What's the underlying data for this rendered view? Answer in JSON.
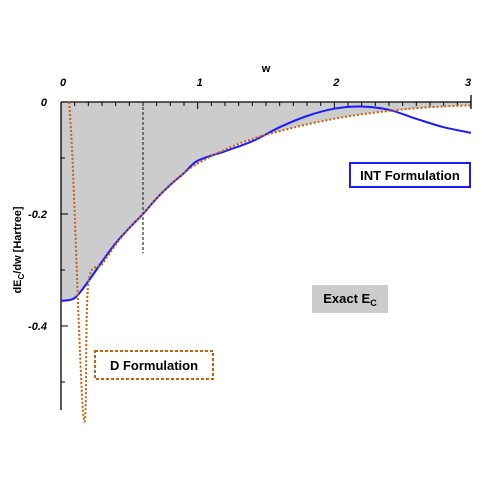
{
  "chart_data": {
    "type": "line",
    "xlabel": "w",
    "ylabel_main": "dE",
    "ylabel_sub": "C",
    "ylabel_rest": "/dw [Hartree]",
    "xlim": [
      0,
      3
    ],
    "ylim": [
      -0.55,
      0
    ],
    "xticks": [
      0,
      1,
      2,
      3
    ],
    "xtick_labels": [
      "0",
      "1",
      "2",
      "3"
    ],
    "yticks": [
      0,
      -0.2,
      -0.4
    ],
    "ytick_labels": [
      "0",
      "-0.2",
      "-0.4"
    ],
    "vline_x": 0.6,
    "vline_ymin": -0.27,
    "colors": {
      "exact_fill": "#cccccc",
      "int": "#1a1aff",
      "d": "#c8600a",
      "int_box": "#1a1aff",
      "d_box": "#c8600a",
      "exact_box": "#cccccc"
    },
    "series": [
      {
        "name": "Exact E",
        "style": "filled",
        "x": [
          0.0,
          0.1,
          0.2,
          0.3,
          0.4,
          0.5,
          0.6,
          0.7,
          0.8,
          0.9,
          1.0,
          1.2,
          1.4,
          1.6,
          1.8,
          2.0,
          2.2,
          2.4,
          2.6,
          2.8,
          3.0
        ],
        "y": [
          -0.355,
          -0.35,
          -0.325,
          -0.29,
          -0.255,
          -0.225,
          -0.2,
          -0.172,
          -0.148,
          -0.127,
          -0.11,
          -0.085,
          -0.066,
          -0.052,
          -0.04,
          -0.03,
          -0.022,
          -0.016,
          -0.011,
          -0.008,
          -0.006
        ]
      },
      {
        "name": "INT Formulation",
        "style": "solid",
        "x": [
          0.0,
          0.1,
          0.2,
          0.3,
          0.4,
          0.5,
          0.6,
          0.7,
          0.8,
          0.9,
          1.0,
          1.2,
          1.4,
          1.6,
          1.8,
          2.0,
          2.2,
          2.4,
          2.6,
          2.8,
          3.0
        ],
        "y": [
          -0.355,
          -0.35,
          -0.32,
          -0.285,
          -0.252,
          -0.225,
          -0.2,
          -0.172,
          -0.148,
          -0.127,
          -0.105,
          -0.088,
          -0.07,
          -0.045,
          -0.025,
          -0.012,
          -0.008,
          -0.014,
          -0.03,
          -0.045,
          -0.055
        ]
      },
      {
        "name": "D Formulation",
        "style": "dotted",
        "x": [
          0.06,
          0.08,
          0.1,
          0.12,
          0.14,
          0.16,
          0.18,
          0.2,
          0.3,
          0.4,
          0.5,
          0.6,
          0.7,
          0.8,
          0.9,
          1.0,
          1.2,
          1.4,
          1.6,
          1.8,
          2.0,
          2.2,
          2.4,
          2.6,
          2.8,
          3.0
        ],
        "y": [
          0.0,
          -0.08,
          -0.2,
          -0.33,
          -0.45,
          -0.55,
          -0.55,
          -0.325,
          -0.29,
          -0.255,
          -0.225,
          -0.2,
          -0.172,
          -0.148,
          -0.127,
          -0.11,
          -0.085,
          -0.066,
          -0.052,
          -0.04,
          -0.03,
          -0.022,
          -0.016,
          -0.011,
          -0.008,
          -0.006
        ]
      }
    ]
  },
  "legend": {
    "int_label": "INT Formulation",
    "d_label": "D Formulation",
    "exact_label": "Exact E",
    "exact_sub": "C"
  }
}
